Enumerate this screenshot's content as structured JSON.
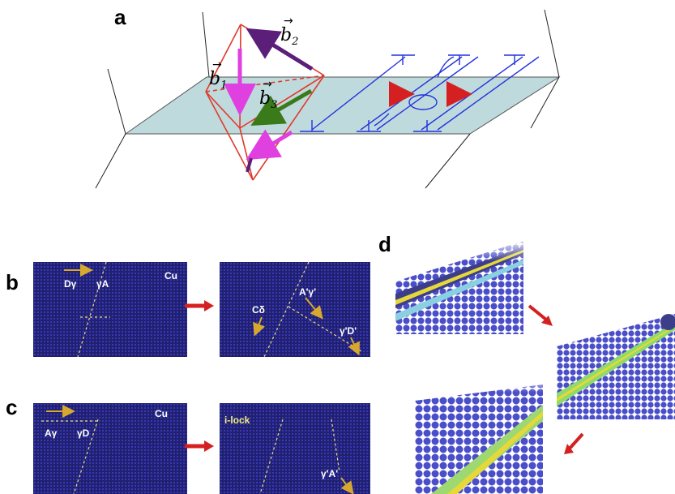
{
  "panels": {
    "a": {
      "letter": "a",
      "vectors": [
        {
          "symbol": "b",
          "sub": "2"
        },
        {
          "symbol": "b",
          "sub": "1"
        },
        {
          "symbol": "b",
          "sub": "3"
        }
      ]
    },
    "b": {
      "letter": "b",
      "left": {
        "element": "Cu",
        "labels": [
          "Dγ",
          "γA"
        ]
      },
      "right": {
        "labels": [
          "A'γ'",
          "Cδ",
          "γ'D'"
        ]
      }
    },
    "c": {
      "letter": "c",
      "left": {
        "element": "Cu",
        "labels": [
          "Aγ",
          "γD"
        ]
      },
      "right": {
        "labels": [
          "i-lock",
          "γ'A'"
        ]
      }
    },
    "d": {
      "letter": "d"
    }
  },
  "colors": {
    "plane": "#bfdadd",
    "octahedron": "#e03a2a",
    "b2": "#5b1f7a",
    "b1": "#e040e0",
    "b3": "#3a7a1a",
    "dislocations": "#2233dd",
    "red_arrows": "#d42020",
    "sim_bg": "#20206e"
  }
}
